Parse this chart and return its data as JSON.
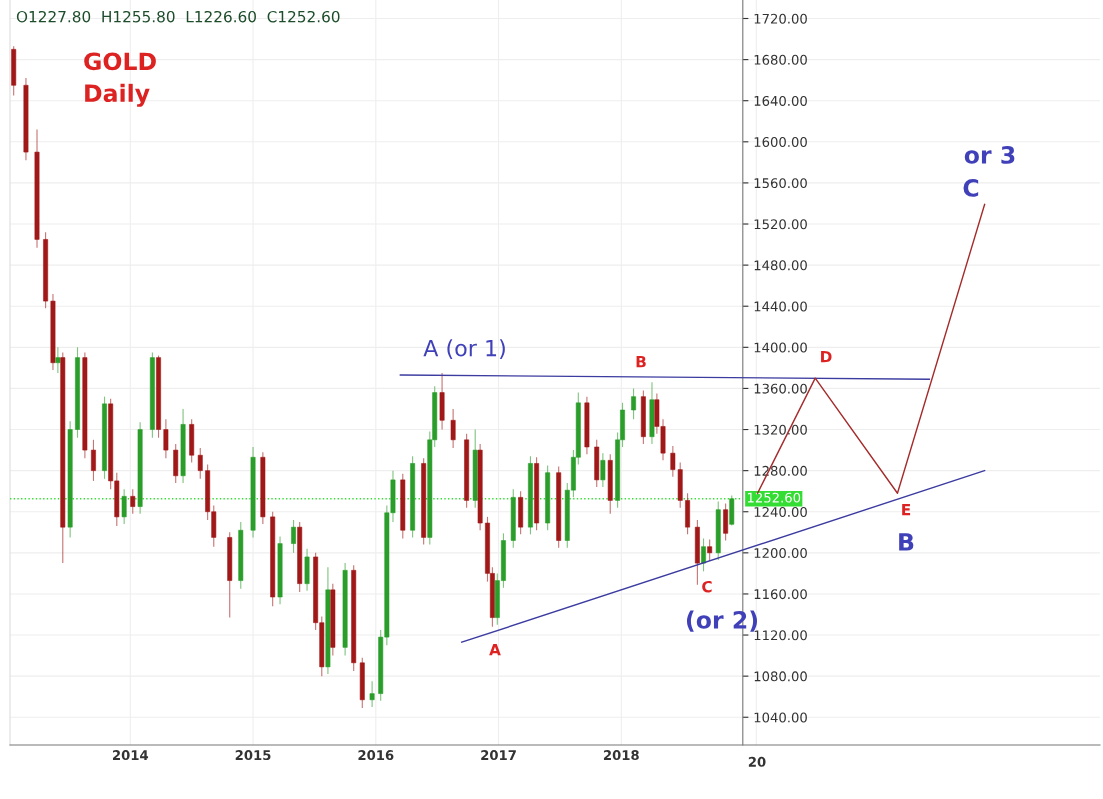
{
  "chart_data": {
    "type": "candlestick",
    "title": "GOLD\nDaily",
    "annotations": [
      "O1227.80  H1255.80  L1226.60  C1252.60",
      "A (or 1)",
      "B",
      "A",
      "C",
      "(or 2)",
      "D",
      "E",
      "B",
      "or 3",
      "C",
      "20"
    ],
    "x": [
      2013.05,
      2013.15,
      2013.24,
      2013.31,
      2013.37,
      2013.41,
      2013.45,
      2013.51,
      2013.57,
      2013.63,
      2013.7,
      2013.79,
      2013.84,
      2013.89,
      2013.95,
      2014.02,
      2014.08,
      2014.18,
      2014.23,
      2014.29,
      2014.37,
      2014.43,
      2014.5,
      2014.57,
      2014.63,
      2014.68,
      2014.81,
      2014.9,
      2015.0,
      2015.08,
      2015.16,
      2015.22,
      2015.33,
      2015.38,
      2015.44,
      2015.51,
      2015.56,
      2015.61,
      2015.65,
      2015.75,
      2015.82,
      2015.89,
      2015.97,
      2016.04,
      2016.09,
      2016.14,
      2016.22,
      2016.3,
      2016.39,
      2016.44,
      2016.48,
      2016.54,
      2016.63,
      2016.74,
      2016.81,
      2016.85,
      2016.91,
      2016.95,
      2016.99,
      2017.04,
      2017.12,
      2017.18,
      2017.26,
      2017.31,
      2017.4,
      2017.49,
      2017.56,
      2017.61,
      2017.65,
      2017.72,
      2017.8,
      2017.85,
      2017.91,
      2017.97,
      2018.01,
      2018.1,
      2018.18,
      2018.25,
      2018.29,
      2018.34,
      2018.42,
      2018.48,
      2018.54,
      2018.62,
      2018.67,
      2018.72,
      2018.79,
      2018.85,
      2018.9
    ],
    "ohlc": [
      [
        1690,
        1693,
        1645,
        1655
      ],
      [
        1655,
        1662,
        1582,
        1590
      ],
      [
        1590,
        1612,
        1497,
        1505
      ],
      [
        1505,
        1512,
        1438,
        1445
      ],
      [
        1445,
        1452,
        1378,
        1385
      ],
      [
        1385,
        1400,
        1375,
        1390
      ],
      [
        1390,
        1395,
        1190,
        1225
      ],
      [
        1225,
        1328,
        1215,
        1320
      ],
      [
        1320,
        1400,
        1312,
        1390
      ],
      [
        1390,
        1395,
        1292,
        1300
      ],
      [
        1300,
        1310,
        1270,
        1280
      ],
      [
        1280,
        1352,
        1272,
        1345
      ],
      [
        1345,
        1350,
        1262,
        1270
      ],
      [
        1270,
        1278,
        1226,
        1235
      ],
      [
        1235,
        1262,
        1228,
        1255
      ],
      [
        1255,
        1262,
        1238,
        1245
      ],
      [
        1245,
        1327,
        1238,
        1320
      ],
      [
        1320,
        1395,
        1312,
        1390
      ],
      [
        1390,
        1392,
        1312,
        1320
      ],
      [
        1320,
        1330,
        1292,
        1300
      ],
      [
        1300,
        1306,
        1268,
        1275
      ],
      [
        1275,
        1340,
        1268,
        1325
      ],
      [
        1325,
        1330,
        1288,
        1295
      ],
      [
        1295,
        1302,
        1272,
        1280
      ],
      [
        1280,
        1286,
        1232,
        1240
      ],
      [
        1240,
        1246,
        1206,
        1215
      ],
      [
        1215,
        1220,
        1137,
        1173
      ],
      [
        1173,
        1230,
        1165,
        1222
      ],
      [
        1222,
        1303,
        1215,
        1293
      ],
      [
        1293,
        1298,
        1228,
        1235
      ],
      [
        1235,
        1240,
        1148,
        1157
      ],
      [
        1157,
        1216,
        1150,
        1209
      ],
      [
        1209,
        1232,
        1200,
        1225
      ],
      [
        1225,
        1230,
        1162,
        1170
      ],
      [
        1170,
        1204,
        1163,
        1196
      ],
      [
        1196,
        1200,
        1125,
        1132
      ],
      [
        1132,
        1138,
        1080,
        1089
      ],
      [
        1089,
        1186,
        1082,
        1164
      ],
      [
        1164,
        1170,
        1100,
        1108
      ],
      [
        1108,
        1190,
        1100,
        1183
      ],
      [
        1183,
        1188,
        1085,
        1093
      ],
      [
        1093,
        1098,
        1049,
        1057
      ],
      [
        1057,
        1075,
        1050,
        1063
      ],
      [
        1063,
        1125,
        1056,
        1118
      ],
      [
        1118,
        1246,
        1110,
        1239
      ],
      [
        1239,
        1280,
        1230,
        1271
      ],
      [
        1271,
        1277,
        1214,
        1222
      ],
      [
        1222,
        1294,
        1215,
        1287
      ],
      [
        1287,
        1292,
        1208,
        1215
      ],
      [
        1215,
        1318,
        1208,
        1310
      ],
      [
        1310,
        1362,
        1303,
        1356
      ],
      [
        1356,
        1375,
        1320,
        1329
      ],
      [
        1329,
        1340,
        1302,
        1310
      ],
      [
        1310,
        1316,
        1244,
        1251
      ],
      [
        1251,
        1320,
        1244,
        1300
      ],
      [
        1300,
        1306,
        1222,
        1229
      ],
      [
        1229,
        1235,
        1172,
        1180
      ],
      [
        1180,
        1186,
        1128,
        1137
      ],
      [
        1137,
        1180,
        1130,
        1173
      ],
      [
        1173,
        1219,
        1166,
        1212
      ],
      [
        1212,
        1262,
        1205,
        1254
      ],
      [
        1254,
        1260,
        1218,
        1225
      ],
      [
        1225,
        1294,
        1218,
        1287
      ],
      [
        1287,
        1293,
        1222,
        1229
      ],
      [
        1229,
        1285,
        1222,
        1278
      ],
      [
        1278,
        1284,
        1205,
        1212
      ],
      [
        1212,
        1268,
        1205,
        1261
      ],
      [
        1261,
        1300,
        1254,
        1293
      ],
      [
        1293,
        1356,
        1286,
        1346
      ],
      [
        1346,
        1352,
        1296,
        1303
      ],
      [
        1303,
        1310,
        1264,
        1271
      ],
      [
        1271,
        1297,
        1264,
        1290
      ],
      [
        1290,
        1296,
        1238,
        1251
      ],
      [
        1251,
        1317,
        1244,
        1310
      ],
      [
        1310,
        1346,
        1303,
        1339
      ],
      [
        1339,
        1360,
        1330,
        1352
      ],
      [
        1352,
        1358,
        1306,
        1313
      ],
      [
        1313,
        1366,
        1306,
        1349
      ],
      [
        1349,
        1355,
        1316,
        1323
      ],
      [
        1323,
        1330,
        1290,
        1297
      ],
      [
        1297,
        1304,
        1274,
        1281
      ],
      [
        1281,
        1288,
        1244,
        1251
      ],
      [
        1251,
        1258,
        1218,
        1225
      ],
      [
        1225,
        1232,
        1169,
        1190
      ],
      [
        1190,
        1214,
        1182,
        1206
      ],
      [
        1206,
        1213,
        1192,
        1200
      ],
      [
        1200,
        1250,
        1193,
        1242
      ],
      [
        1242,
        1248,
        1212,
        1219
      ],
      [
        1227.8,
        1255.8,
        1226.6,
        1252.6
      ]
    ],
    "colors": [
      "#a01818",
      "#a01818",
      "#a01818",
      "#a01818",
      "#a01818",
      "#2a9d2a",
      "#a01818",
      "#2a9d2a",
      "#2a9d2a",
      "#a01818",
      "#a01818",
      "#2a9d2a",
      "#a01818",
      "#a01818",
      "#2a9d2a",
      "#a01818",
      "#2a9d2a",
      "#2a9d2a",
      "#a01818",
      "#a01818",
      "#a01818",
      "#2a9d2a",
      "#a01818",
      "#a01818",
      "#a01818",
      "#a01818",
      "#a01818",
      "#2a9d2a",
      "#2a9d2a",
      "#a01818",
      "#a01818",
      "#2a9d2a",
      "#2a9d2a",
      "#a01818",
      "#2a9d2a",
      "#a01818",
      "#a01818",
      "#2a9d2a",
      "#a01818",
      "#2a9d2a",
      "#a01818",
      "#a01818",
      "#2a9d2a",
      "#2a9d2a",
      "#2a9d2a",
      "#2a9d2a",
      "#a01818",
      "#2a9d2a",
      "#a01818",
      "#2a9d2a",
      "#2a9d2a",
      "#a01818",
      "#a01818",
      "#a01818",
      "#2a9d2a",
      "#a01818",
      "#a01818",
      "#a01818",
      "#2a9d2a",
      "#2a9d2a",
      "#2a9d2a",
      "#a01818",
      "#2a9d2a",
      "#a01818",
      "#2a9d2a",
      "#a01818",
      "#2a9d2a",
      "#2a9d2a",
      "#2a9d2a",
      "#a01818",
      "#a01818",
      "#2a9d2a",
      "#a01818",
      "#2a9d2a",
      "#2a9d2a",
      "#2a9d2a",
      "#a01818",
      "#2a9d2a",
      "#a01818",
      "#a01818",
      "#a01818",
      "#a01818",
      "#a01818",
      "#a01818",
      "#2a9d2a",
      "#a01818",
      "#2a9d2a",
      "#a01818",
      "#2a9d2a"
    ],
    "series": [
      {
        "type": "line",
        "color": "#3b3ba0",
        "x": [
          2016.2,
          2020.51
        ],
        "values": [
          1373,
          1369
        ]
      },
      {
        "type": "line",
        "color": "#3b3ba0",
        "x": [
          2016.7,
          2020.96
        ],
        "values": [
          1113,
          1280
        ]
      },
      {
        "type": "line",
        "color": "#a52a2a",
        "x": [
          2019.11,
          2019.58,
          2020.25,
          2020.96
        ],
        "values": [
          1258,
          1370,
          1258,
          1539
        ]
      }
    ],
    "ref_lines": [
      {
        "axis": "y",
        "value": 1252.6,
        "label": "1252.60",
        "color": "#33dd33",
        "line_style": "dotted"
      }
    ],
    "xlim": [
      2013.02,
      2021.9
    ],
    "ylim": [
      1013,
      1738
    ],
    "xticks": [
      2014,
      2015,
      2016,
      2017,
      2018,
      {
        "value": 2019.1,
        "label": null
      }
    ],
    "yticks": [
      {
        "value": 1040,
        "label": "1040.00"
      },
      {
        "value": 1080,
        "label": "1080.00"
      },
      {
        "value": 1120,
        "label": "1120.00"
      },
      {
        "value": 1160,
        "label": "1160.00"
      },
      {
        "value": 1200,
        "label": "1200.00"
      },
      {
        "value": 1240,
        "label": "1240.00"
      },
      {
        "value": 1280,
        "label": "1280.00"
      },
      {
        "value": 1320,
        "label": "1320.00"
      },
      {
        "value": 1360,
        "label": "1360.00"
      },
      {
        "value": 1400,
        "label": "1400.00"
      },
      {
        "value": 1440,
        "label": "1440.00"
      },
      {
        "value": 1480,
        "label": "1480.00"
      },
      {
        "value": 1520,
        "label": "1520.00"
      },
      {
        "value": 1560,
        "label": "1560.00"
      },
      {
        "value": 1600,
        "label": "1600.00"
      },
      {
        "value": 1640,
        "label": "1640.00"
      },
      {
        "value": 1680,
        "label": "1680.00"
      },
      {
        "value": 1720,
        "label": "1720.00"
      }
    ],
    "grid": true
  }
}
